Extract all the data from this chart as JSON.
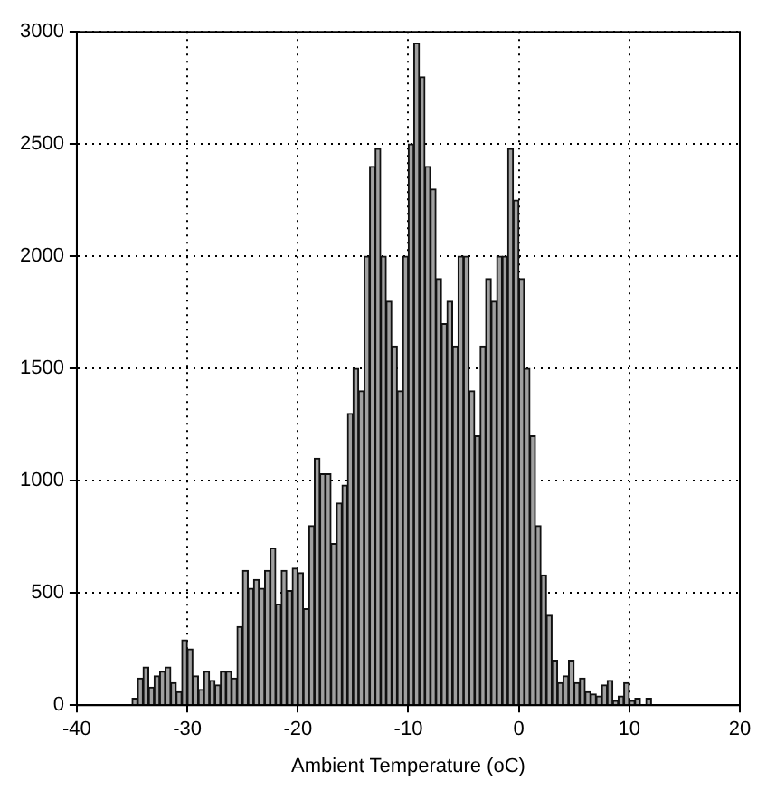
{
  "chart_data": {
    "type": "histogram",
    "xlabel": "Ambient Temperature (oC)",
    "bins": [
      -35,
      -34.5,
      -34,
      -33.5,
      -33,
      -32.5,
      -32,
      -31.5,
      -31,
      -30.5,
      -30,
      -29.5,
      -29,
      -28.5,
      -28,
      -27.5,
      -27,
      -26.5,
      -26,
      -25.5,
      -25,
      -24.5,
      -24,
      -23.5,
      -23,
      -22.5,
      -22,
      -21.5,
      -21,
      -20.5,
      -20,
      -19.5,
      -19,
      -18.5,
      -18,
      -17.5,
      -17,
      -16.5,
      -16,
      -15.5,
      -15,
      -14.5,
      -14,
      -13.5,
      -13,
      -12.5,
      -12,
      -11.5,
      -11,
      -10.5,
      -10,
      -9.5,
      -9,
      -8.5,
      -8,
      -7.5,
      -7,
      -6.5,
      -6,
      -5.5,
      -5,
      -4.5,
      -4,
      -3.5,
      -3,
      -2.5,
      -2,
      -1.5,
      -1,
      -0.5,
      0,
      0.5,
      1,
      1.5,
      2,
      2.5,
      3,
      3.5,
      4,
      4.5,
      5,
      5.5,
      6,
      6.5,
      7,
      7.5,
      8,
      8.5,
      9,
      9.5,
      10,
      10.5,
      11,
      11.5,
      12
    ],
    "values": [
      30,
      120,
      170,
      80,
      130,
      150,
      170,
      100,
      60,
      290,
      250,
      130,
      70,
      150,
      110,
      90,
      150,
      150,
      120,
      350,
      600,
      520,
      560,
      520,
      600,
      700,
      450,
      600,
      510,
      610,
      590,
      430,
      800,
      1100,
      1030,
      1030,
      720,
      900,
      980,
      1300,
      1500,
      1400,
      2000,
      2400,
      2480,
      2000,
      1800,
      1600,
      1400,
      2000,
      2500,
      2950,
      2800,
      2400,
      2300,
      1900,
      1700,
      1800,
      1600,
      2000,
      2000,
      1400,
      1200,
      1600,
      1900,
      1800,
      2000,
      2000,
      2480,
      2250,
      1900,
      1500,
      1200,
      800,
      580,
      400,
      200,
      100,
      130,
      200,
      100,
      120,
      60,
      50,
      40,
      90,
      110,
      20,
      40,
      100,
      20,
      30,
      0,
      30
    ],
    "color": "#a0a0a0",
    "xlim": [
      -40,
      20
    ],
    "xticks": [
      -40,
      -30,
      -20,
      -10,
      0,
      10,
      20
    ],
    "ylim": [
      0,
      3000
    ],
    "yticks": [
      0,
      500,
      1000,
      1500,
      2000,
      2500,
      3000
    ],
    "grid": true
  }
}
